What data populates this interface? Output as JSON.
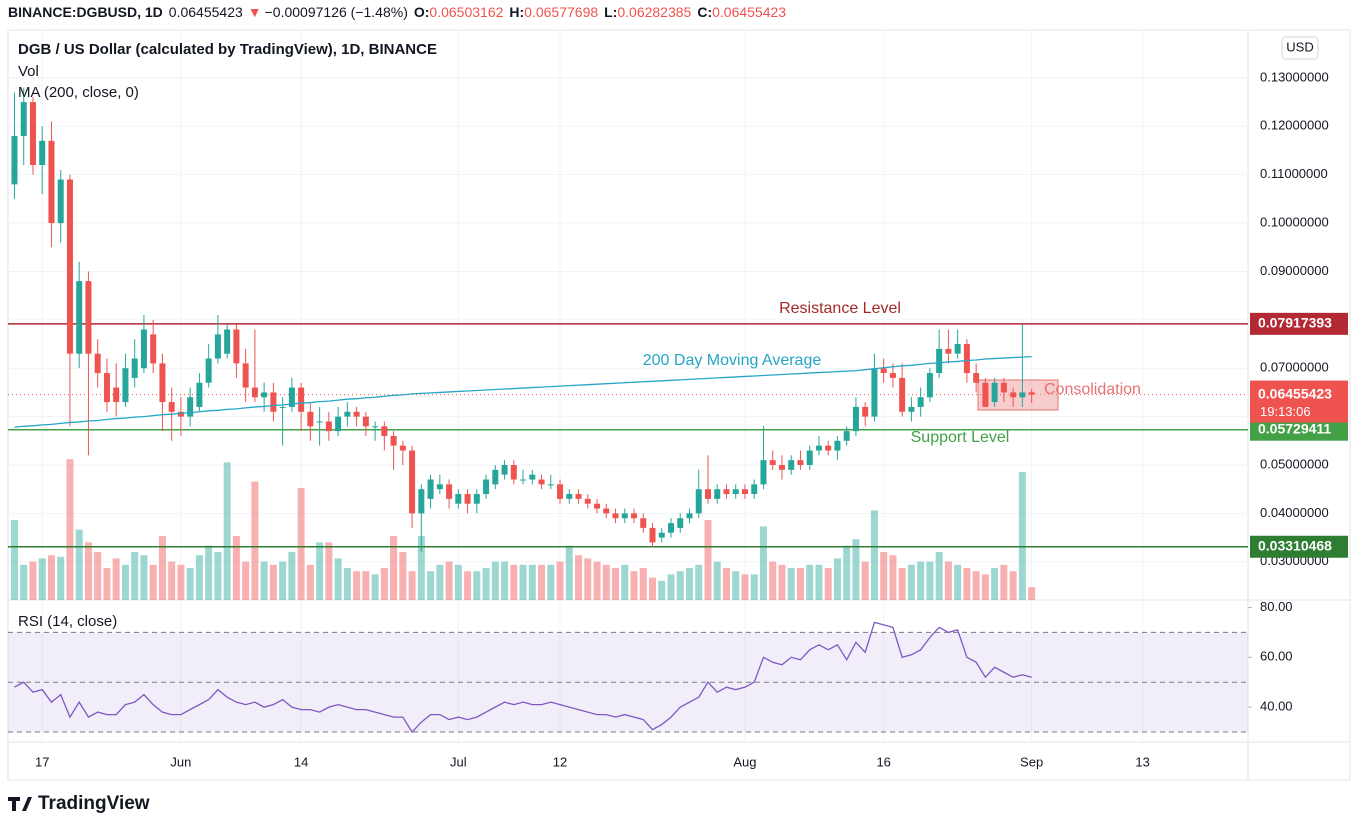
{
  "header": {
    "symbol": "BINANCE:DGBUSD, 1D",
    "arrow": "▼",
    "change": "−0.00097126 (−1.48%)",
    "o_label": "O:",
    "h_label": "H:",
    "l_label": "L:",
    "c_label": "C:"
  },
  "chart_data": {
    "type": "candlestick",
    "legend": [
      "DGB / US Dollar (calculated by TradingView), 1D, BINANCE",
      "Vol",
      "MA (200, close, 0)"
    ],
    "currency": "USD",
    "countdown": "19:13:06",
    "brand": "TradingView",
    "annotations": {
      "resistance": "Resistance Level",
      "ma": "200 Day Moving Average",
      "consolidation": "Consolidation",
      "support": "Support Level"
    },
    "up_color": "#26a69a",
    "down_color": "#ef5350",
    "xlim": [
      -0.7,
      133.4
    ],
    "xticks": [
      {
        "value": 3,
        "label": "17"
      },
      {
        "value": 18,
        "label": "Jun"
      },
      {
        "value": 31,
        "label": "14"
      },
      {
        "value": 48,
        "label": "Jul"
      },
      {
        "value": 59,
        "label": "12"
      },
      {
        "value": 79,
        "label": "Aug"
      },
      {
        "value": 94,
        "label": "16"
      },
      {
        "value": 110,
        "label": "Sep"
      },
      {
        "value": 122,
        "label": "13"
      }
    ],
    "ylim": [
      0.0221,
      0.1399
    ],
    "yticks": [
      {
        "value": 0.13,
        "label": "0.13000000"
      },
      {
        "value": 0.12,
        "label": "0.12000000"
      },
      {
        "value": 0.11,
        "label": "0.11000000"
      },
      {
        "value": 0.1,
        "label": "0.10000000"
      },
      {
        "value": 0.09,
        "label": "0.09000000"
      },
      {
        "value": 0.08,
        "label": "0.08000000"
      },
      {
        "value": 0.07,
        "label": "0.07000000"
      },
      {
        "value": 0.06,
        "label": "0.06000000"
      },
      {
        "value": 0.05,
        "label": "0.05000000"
      },
      {
        "value": 0.04,
        "label": "0.04000000"
      },
      {
        "value": 0.03,
        "label": "0.03000000"
      }
    ],
    "levels": [
      {
        "value": 0.07917393,
        "color": "#b22833"
      },
      {
        "value": 0.05729411,
        "color": "#43a047"
      },
      {
        "value": 0.03310468,
        "color": "#2e7d32"
      }
    ],
    "candles": [
      [
        0.108,
        0.127,
        0.105,
        0.118
      ],
      [
        0.118,
        0.128,
        0.112,
        0.125
      ],
      [
        0.125,
        0.126,
        0.11,
        0.112
      ],
      [
        0.112,
        0.12,
        0.106,
        0.117
      ],
      [
        0.117,
        0.121,
        0.095,
        0.1
      ],
      [
        0.1,
        0.111,
        0.096,
        0.109
      ],
      [
        0.109,
        0.11,
        0.058,
        0.073
      ],
      [
        0.073,
        0.092,
        0.07,
        0.088
      ],
      [
        0.088,
        0.09,
        0.052,
        0.073
      ],
      [
        0.073,
        0.076,
        0.066,
        0.069
      ],
      [
        0.069,
        0.072,
        0.061,
        0.063
      ],
      [
        0.066,
        0.071,
        0.06,
        0.063
      ],
      [
        0.063,
        0.073,
        0.062,
        0.07
      ],
      [
        0.068,
        0.076,
        0.066,
        0.072
      ],
      [
        0.07,
        0.081,
        0.069,
        0.078
      ],
      [
        0.077,
        0.08,
        0.069,
        0.071
      ],
      [
        0.071,
        0.073,
        0.057,
        0.063
      ],
      [
        0.063,
        0.066,
        0.055,
        0.061
      ],
      [
        0.061,
        0.064,
        0.056,
        0.06
      ],
      [
        0.06,
        0.066,
        0.058,
        0.064
      ],
      [
        0.062,
        0.069,
        0.061,
        0.067
      ],
      [
        0.067,
        0.075,
        0.066,
        0.072
      ],
      [
        0.072,
        0.081,
        0.071,
        0.077
      ],
      [
        0.073,
        0.079,
        0.072,
        0.078
      ],
      [
        0.078,
        0.079,
        0.068,
        0.071
      ],
      [
        0.071,
        0.074,
        0.063,
        0.066
      ],
      [
        0.066,
        0.078,
        0.063,
        0.064
      ],
      [
        0.064,
        0.067,
        0.061,
        0.065
      ],
      [
        0.065,
        0.067,
        0.059,
        0.061
      ],
      [
        0.062,
        0.064,
        0.054,
        0.062
      ],
      [
        0.062,
        0.068,
        0.061,
        0.066
      ],
      [
        0.066,
        0.067,
        0.057,
        0.061
      ],
      [
        0.061,
        0.063,
        0.055,
        0.058
      ],
      [
        0.059,
        0.062,
        0.054,
        0.059
      ],
      [
        0.059,
        0.061,
        0.055,
        0.057
      ],
      [
        0.057,
        0.062,
        0.056,
        0.06
      ],
      [
        0.06,
        0.063,
        0.058,
        0.061
      ],
      [
        0.061,
        0.062,
        0.058,
        0.06
      ],
      [
        0.06,
        0.061,
        0.056,
        0.058
      ],
      [
        0.058,
        0.059,
        0.055,
        0.058
      ],
      [
        0.058,
        0.059,
        0.053,
        0.056
      ],
      [
        0.056,
        0.057,
        0.049,
        0.054
      ],
      [
        0.054,
        0.055,
        0.05,
        0.053
      ],
      [
        0.053,
        0.054,
        0.037,
        0.04
      ],
      [
        0.04,
        0.046,
        0.032,
        0.045
      ],
      [
        0.043,
        0.048,
        0.041,
        0.047
      ],
      [
        0.045,
        0.048,
        0.044,
        0.046
      ],
      [
        0.046,
        0.047,
        0.041,
        0.043
      ],
      [
        0.042,
        0.045,
        0.041,
        0.044
      ],
      [
        0.044,
        0.045,
        0.04,
        0.042
      ],
      [
        0.042,
        0.045,
        0.04,
        0.044
      ],
      [
        0.044,
        0.048,
        0.043,
        0.047
      ],
      [
        0.046,
        0.05,
        0.045,
        0.049
      ],
      [
        0.048,
        0.051,
        0.047,
        0.05
      ],
      [
        0.05,
        0.051,
        0.046,
        0.047
      ],
      [
        0.047,
        0.049,
        0.046,
        0.047
      ],
      [
        0.047,
        0.049,
        0.046,
        0.048
      ],
      [
        0.047,
        0.048,
        0.045,
        0.046
      ],
      [
        0.046,
        0.048,
        0.045,
        0.046
      ],
      [
        0.046,
        0.047,
        0.042,
        0.043
      ],
      [
        0.043,
        0.045,
        0.042,
        0.044
      ],
      [
        0.044,
        0.045,
        0.042,
        0.043
      ],
      [
        0.043,
        0.044,
        0.041,
        0.042
      ],
      [
        0.042,
        0.043,
        0.04,
        0.041
      ],
      [
        0.041,
        0.042,
        0.039,
        0.04
      ],
      [
        0.04,
        0.041,
        0.038,
        0.039
      ],
      [
        0.039,
        0.041,
        0.038,
        0.04
      ],
      [
        0.04,
        0.041,
        0.038,
        0.039
      ],
      [
        0.039,
        0.04,
        0.036,
        0.037
      ],
      [
        0.037,
        0.038,
        0.033,
        0.034
      ],
      [
        0.035,
        0.037,
        0.034,
        0.036
      ],
      [
        0.036,
        0.039,
        0.035,
        0.038
      ],
      [
        0.037,
        0.04,
        0.036,
        0.039
      ],
      [
        0.039,
        0.041,
        0.038,
        0.04
      ],
      [
        0.04,
        0.049,
        0.039,
        0.045
      ],
      [
        0.045,
        0.052,
        0.042,
        0.043
      ],
      [
        0.043,
        0.046,
        0.042,
        0.045
      ],
      [
        0.045,
        0.046,
        0.043,
        0.044
      ],
      [
        0.044,
        0.046,
        0.043,
        0.045
      ],
      [
        0.045,
        0.046,
        0.043,
        0.044
      ],
      [
        0.044,
        0.047,
        0.043,
        0.046
      ],
      [
        0.046,
        0.058,
        0.045,
        0.051
      ],
      [
        0.051,
        0.053,
        0.049,
        0.05
      ],
      [
        0.05,
        0.052,
        0.047,
        0.049
      ],
      [
        0.049,
        0.052,
        0.048,
        0.051
      ],
      [
        0.051,
        0.053,
        0.049,
        0.05
      ],
      [
        0.05,
        0.054,
        0.049,
        0.053
      ],
      [
        0.053,
        0.056,
        0.052,
        0.054
      ],
      [
        0.054,
        0.055,
        0.052,
        0.053
      ],
      [
        0.053,
        0.056,
        0.051,
        0.055
      ],
      [
        0.055,
        0.058,
        0.054,
        0.057
      ],
      [
        0.057,
        0.064,
        0.056,
        0.062
      ],
      [
        0.062,
        0.063,
        0.058,
        0.06
      ],
      [
        0.06,
        0.073,
        0.059,
        0.07
      ],
      [
        0.07,
        0.072,
        0.067,
        0.069
      ],
      [
        0.069,
        0.071,
        0.066,
        0.068
      ],
      [
        0.068,
        0.071,
        0.06,
        0.061
      ],
      [
        0.061,
        0.064,
        0.059,
        0.062
      ],
      [
        0.062,
        0.066,
        0.06,
        0.064
      ],
      [
        0.064,
        0.07,
        0.063,
        0.069
      ],
      [
        0.069,
        0.078,
        0.068,
        0.074
      ],
      [
        0.074,
        0.078,
        0.071,
        0.073
      ],
      [
        0.073,
        0.078,
        0.072,
        0.075
      ],
      [
        0.075,
        0.076,
        0.067,
        0.069
      ],
      [
        0.069,
        0.071,
        0.065,
        0.067
      ],
      [
        0.067,
        0.068,
        0.062,
        0.062
      ],
      [
        0.063,
        0.068,
        0.062,
        0.067
      ],
      [
        0.067,
        0.068,
        0.063,
        0.065
      ],
      [
        0.065,
        0.066,
        0.062,
        0.064
      ],
      [
        0.064,
        0.079,
        0.062,
        0.065
      ],
      [
        0.06503162,
        0.06577698,
        0.06282385,
        0.06455423
      ]
    ],
    "volume": {
      "vlim": [
        0,
        100
      ],
      "values": [
        50,
        22,
        24,
        26,
        28,
        27,
        88,
        44,
        36,
        30,
        20,
        26,
        22,
        30,
        28,
        22,
        40,
        24,
        22,
        20,
        28,
        34,
        30,
        86,
        40,
        24,
        74,
        24,
        22,
        24,
        30,
        70,
        22,
        36,
        36,
        26,
        20,
        18,
        18,
        16,
        20,
        40,
        30,
        18,
        40,
        18,
        22,
        24,
        22,
        18,
        18,
        20,
        24,
        24,
        22,
        22,
        22,
        22,
        22,
        24,
        34,
        28,
        26,
        24,
        22,
        20,
        22,
        18,
        20,
        14,
        12,
        16,
        18,
        20,
        22,
        50,
        24,
        20,
        18,
        16,
        16,
        46,
        24,
        22,
        20,
        20,
        22,
        22,
        20,
        26,
        34,
        38,
        24,
        56,
        30,
        28,
        20,
        22,
        24,
        24,
        30,
        24,
        22,
        20,
        18,
        16,
        20,
        22,
        18,
        80,
        8
      ]
    },
    "ma": {
      "color": "#26a6c6",
      "values": [
        0.0578,
        0.058,
        0.0581,
        0.0583,
        0.0584,
        0.0586,
        0.0588,
        0.0589,
        0.0591,
        0.0592,
        0.0594,
        0.0596,
        0.0597,
        0.0599,
        0.06,
        0.0602,
        0.0604,
        0.0605,
        0.0607,
        0.0608,
        0.061,
        0.0612,
        0.0613,
        0.0615,
        0.0616,
        0.0618,
        0.062,
        0.0621,
        0.0623,
        0.0624,
        0.0626,
        0.0628,
        0.0629,
        0.0631,
        0.0632,
        0.0634,
        0.0636,
        0.0637,
        0.0639,
        0.064,
        0.0642,
        0.0644,
        0.0645,
        0.0647,
        0.0648,
        0.0649,
        0.065,
        0.0651,
        0.0652,
        0.0653,
        0.0654,
        0.0655,
        0.0656,
        0.0657,
        0.0658,
        0.0659,
        0.066,
        0.0661,
        0.0662,
        0.0663,
        0.0664,
        0.0665,
        0.0666,
        0.0667,
        0.0668,
        0.0669,
        0.067,
        0.0671,
        0.0672,
        0.0673,
        0.0674,
        0.0675,
        0.0676,
        0.0677,
        0.0678,
        0.0679,
        0.068,
        0.0681,
        0.0682,
        0.0683,
        0.0684,
        0.0685,
        0.0686,
        0.0687,
        0.0688,
        0.0689,
        0.069,
        0.0691,
        0.0692,
        0.0693,
        0.0694,
        0.0695,
        0.0697,
        0.0699,
        0.0701,
        0.0703,
        0.0705,
        0.0706,
        0.0708,
        0.071,
        0.0711,
        0.0713,
        0.0714,
        0.0716,
        0.0717,
        0.0719,
        0.072,
        0.0721,
        0.0722,
        0.0723,
        0.0724
      ]
    },
    "rsi": {
      "title": "RSI (14, close)",
      "color": "#7e57c2",
      "ylim": [
        26,
        83
      ],
      "yticks": [
        {
          "value": 80,
          "label": "80.00"
        },
        {
          "value": 60,
          "label": "60.00"
        },
        {
          "value": 40,
          "label": "40.00"
        }
      ],
      "bands": [
        30,
        50,
        70
      ],
      "values": [
        48,
        50,
        46,
        47,
        42,
        45,
        36,
        42,
        36,
        38,
        37,
        37,
        41,
        42,
        45,
        41,
        38,
        37,
        37,
        39,
        41,
        43,
        47,
        44,
        42,
        41,
        42,
        40,
        41,
        43,
        40,
        39,
        39,
        38,
        40,
        41,
        40,
        39,
        39,
        38,
        37,
        36,
        36,
        30,
        34,
        37,
        37,
        35,
        36,
        35,
        36,
        38,
        40,
        42,
        41,
        42,
        41,
        41,
        42,
        41,
        40,
        39,
        38,
        37,
        37,
        36,
        37,
        36,
        35,
        31,
        33,
        36,
        40,
        42,
        44,
        50,
        46,
        48,
        47,
        48,
        50,
        60,
        58,
        57,
        60,
        59,
        63,
        65,
        63,
        65,
        59,
        66,
        62,
        74,
        73,
        72,
        60,
        61,
        63,
        68,
        72,
        70,
        71,
        60,
        58,
        52,
        56,
        54,
        52,
        53,
        52
      ]
    }
  }
}
